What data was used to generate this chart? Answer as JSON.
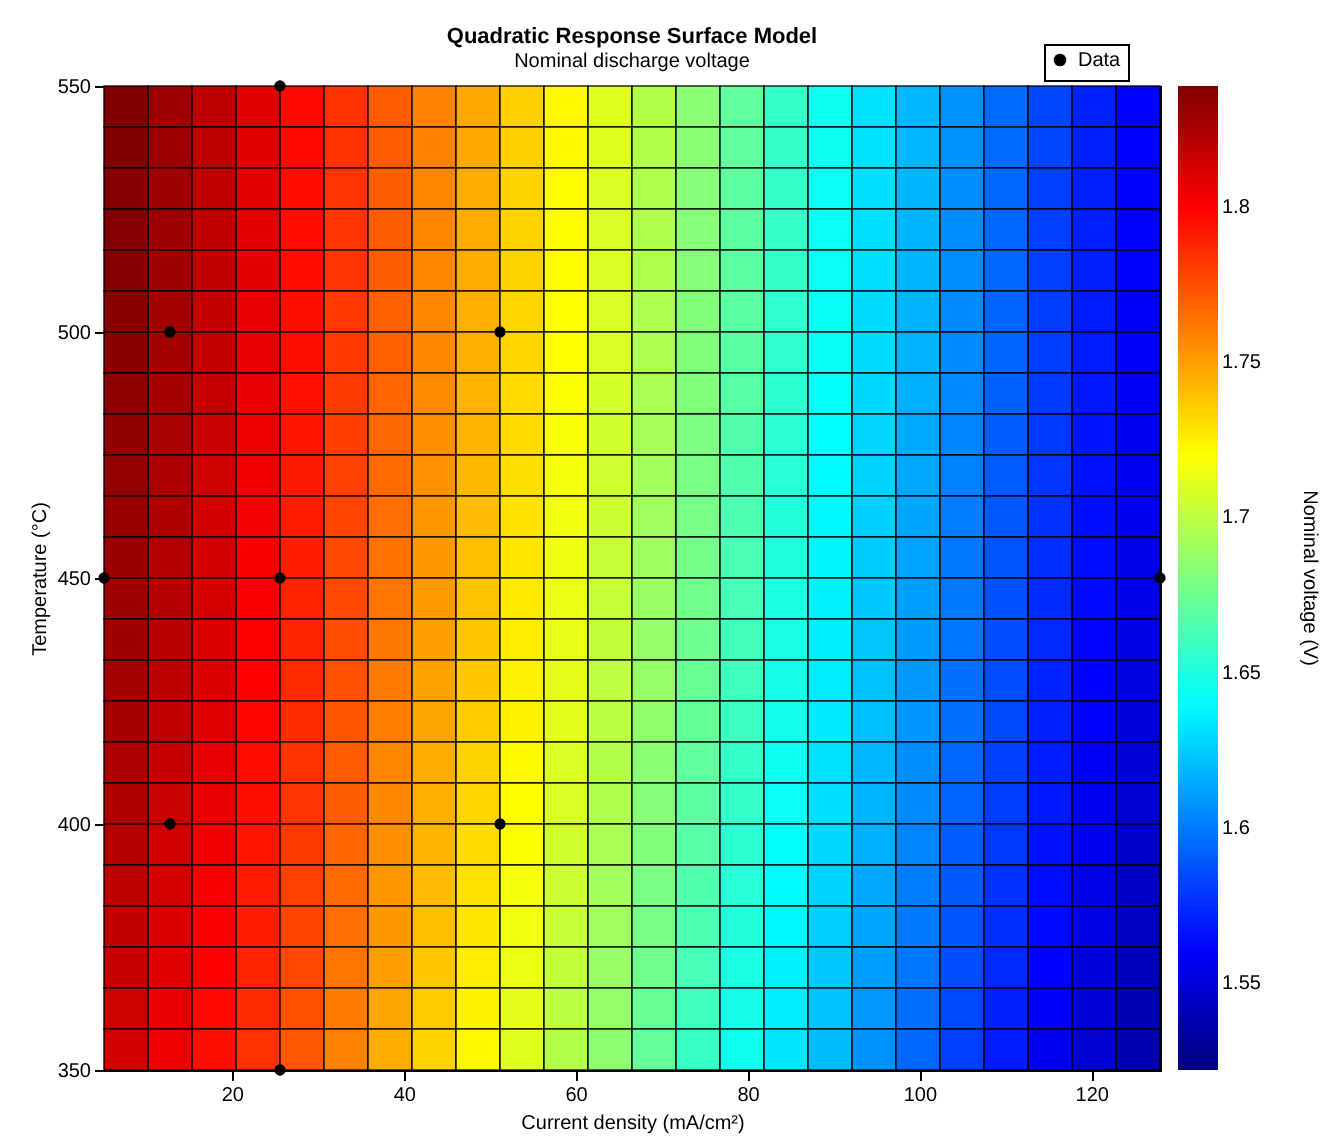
{
  "chart_data": {
    "type": "heatmap",
    "title": "Quadratic Response Surface Model",
    "subtitle": "Nominal discharge voltage",
    "xlabel": "Current density (mA/cm²)",
    "ylabel": "Temperature (°C)",
    "clabel": "Nominal voltage (V)",
    "xlim": [
      5.12,
      128
    ],
    "ylim": [
      350,
      550
    ],
    "xticks": [
      20,
      40,
      60,
      80,
      100,
      120
    ],
    "yticks": [
      350,
      400,
      450,
      500,
      550
    ],
    "clim": [
      1.522,
      1.839
    ],
    "cticks": [
      1.55,
      1.6,
      1.65,
      1.7,
      1.75,
      1.8
    ],
    "legend": "top right",
    "marker": "circle",
    "cells": [
      [
        1.838,
        1.83,
        1.82,
        1.809,
        1.797,
        1.784,
        1.771,
        1.759,
        1.747,
        1.735,
        1.722,
        1.71,
        1.697,
        1.684,
        1.671,
        1.658,
        1.645,
        1.632,
        1.619,
        1.607,
        1.595,
        1.583,
        1.572,
        1.562
      ],
      [
        1.838,
        1.83,
        1.82,
        1.809,
        1.797,
        1.784,
        1.771,
        1.759,
        1.747,
        1.735,
        1.722,
        1.71,
        1.697,
        1.684,
        1.671,
        1.658,
        1.645,
        1.632,
        1.619,
        1.607,
        1.595,
        1.583,
        1.572,
        1.562
      ],
      [
        1.837,
        1.829,
        1.819,
        1.808,
        1.796,
        1.783,
        1.77,
        1.758,
        1.746,
        1.734,
        1.721,
        1.709,
        1.696,
        1.683,
        1.67,
        1.657,
        1.644,
        1.631,
        1.618,
        1.606,
        1.594,
        1.582,
        1.571,
        1.561
      ],
      [
        1.837,
        1.829,
        1.819,
        1.808,
        1.796,
        1.783,
        1.77,
        1.758,
        1.746,
        1.734,
        1.721,
        1.709,
        1.696,
        1.683,
        1.67,
        1.657,
        1.644,
        1.631,
        1.618,
        1.606,
        1.594,
        1.582,
        1.571,
        1.561
      ],
      [
        1.837,
        1.829,
        1.819,
        1.808,
        1.796,
        1.783,
        1.77,
        1.758,
        1.746,
        1.734,
        1.721,
        1.709,
        1.696,
        1.683,
        1.67,
        1.657,
        1.644,
        1.631,
        1.618,
        1.606,
        1.594,
        1.582,
        1.571,
        1.561
      ],
      [
        1.836,
        1.828,
        1.818,
        1.807,
        1.795,
        1.782,
        1.769,
        1.757,
        1.745,
        1.733,
        1.72,
        1.708,
        1.695,
        1.682,
        1.669,
        1.656,
        1.643,
        1.63,
        1.617,
        1.605,
        1.593,
        1.581,
        1.57,
        1.56
      ],
      [
        1.836,
        1.828,
        1.818,
        1.807,
        1.795,
        1.782,
        1.769,
        1.757,
        1.745,
        1.733,
        1.72,
        1.708,
        1.695,
        1.682,
        1.669,
        1.656,
        1.643,
        1.63,
        1.617,
        1.605,
        1.593,
        1.581,
        1.57,
        1.56
      ],
      [
        1.835,
        1.827,
        1.817,
        1.806,
        1.794,
        1.781,
        1.768,
        1.756,
        1.744,
        1.732,
        1.719,
        1.707,
        1.694,
        1.681,
        1.668,
        1.655,
        1.642,
        1.629,
        1.616,
        1.604,
        1.592,
        1.58,
        1.569,
        1.559
      ],
      [
        1.834,
        1.826,
        1.816,
        1.805,
        1.793,
        1.78,
        1.767,
        1.755,
        1.743,
        1.731,
        1.718,
        1.706,
        1.693,
        1.68,
        1.667,
        1.654,
        1.641,
        1.628,
        1.615,
        1.603,
        1.591,
        1.579,
        1.568,
        1.558
      ],
      [
        1.833,
        1.825,
        1.815,
        1.804,
        1.792,
        1.779,
        1.766,
        1.754,
        1.742,
        1.73,
        1.717,
        1.705,
        1.692,
        1.679,
        1.666,
        1.653,
        1.64,
        1.627,
        1.614,
        1.602,
        1.59,
        1.578,
        1.567,
        1.557
      ],
      [
        1.832,
        1.824,
        1.814,
        1.803,
        1.791,
        1.778,
        1.765,
        1.753,
        1.741,
        1.729,
        1.716,
        1.704,
        1.691,
        1.678,
        1.665,
        1.652,
        1.639,
        1.626,
        1.613,
        1.601,
        1.589,
        1.577,
        1.566,
        1.556
      ],
      [
        1.831,
        1.823,
        1.813,
        1.802,
        1.79,
        1.777,
        1.764,
        1.752,
        1.74,
        1.728,
        1.715,
        1.703,
        1.69,
        1.677,
        1.664,
        1.651,
        1.638,
        1.625,
        1.612,
        1.6,
        1.588,
        1.576,
        1.565,
        1.555
      ],
      [
        1.83,
        1.822,
        1.812,
        1.801,
        1.789,
        1.776,
        1.763,
        1.751,
        1.739,
        1.727,
        1.714,
        1.702,
        1.689,
        1.676,
        1.663,
        1.65,
        1.637,
        1.624,
        1.611,
        1.599,
        1.587,
        1.575,
        1.564,
        1.554
      ],
      [
        1.829,
        1.821,
        1.811,
        1.8,
        1.788,
        1.775,
        1.762,
        1.75,
        1.738,
        1.726,
        1.713,
        1.701,
        1.688,
        1.675,
        1.662,
        1.649,
        1.636,
        1.623,
        1.61,
        1.598,
        1.586,
        1.574,
        1.563,
        1.553
      ],
      [
        1.828,
        1.82,
        1.81,
        1.799,
        1.787,
        1.774,
        1.761,
        1.749,
        1.737,
        1.725,
        1.712,
        1.7,
        1.687,
        1.674,
        1.661,
        1.648,
        1.635,
        1.622,
        1.609,
        1.597,
        1.585,
        1.573,
        1.562,
        1.552
      ],
      [
        1.827,
        1.819,
        1.809,
        1.798,
        1.786,
        1.773,
        1.76,
        1.748,
        1.736,
        1.724,
        1.711,
        1.699,
        1.686,
        1.673,
        1.66,
        1.647,
        1.634,
        1.621,
        1.608,
        1.596,
        1.584,
        1.572,
        1.561,
        1.551
      ],
      [
        1.825,
        1.817,
        1.807,
        1.796,
        1.784,
        1.771,
        1.758,
        1.746,
        1.734,
        1.722,
        1.709,
        1.697,
        1.684,
        1.671,
        1.658,
        1.645,
        1.632,
        1.619,
        1.606,
        1.594,
        1.582,
        1.57,
        1.559,
        1.549
      ],
      [
        1.824,
        1.816,
        1.806,
        1.795,
        1.783,
        1.77,
        1.757,
        1.745,
        1.733,
        1.721,
        1.708,
        1.696,
        1.683,
        1.67,
        1.657,
        1.644,
        1.631,
        1.618,
        1.605,
        1.593,
        1.581,
        1.569,
        1.558,
        1.548
      ],
      [
        1.822,
        1.814,
        1.804,
        1.793,
        1.781,
        1.768,
        1.755,
        1.743,
        1.731,
        1.719,
        1.706,
        1.694,
        1.681,
        1.668,
        1.655,
        1.642,
        1.629,
        1.616,
        1.603,
        1.591,
        1.579,
        1.567,
        1.556,
        1.546
      ],
      [
        1.82,
        1.812,
        1.802,
        1.791,
        1.779,
        1.766,
        1.753,
        1.741,
        1.729,
        1.717,
        1.704,
        1.692,
        1.679,
        1.666,
        1.653,
        1.64,
        1.627,
        1.614,
        1.601,
        1.589,
        1.577,
        1.565,
        1.554,
        1.544
      ],
      [
        1.819,
        1.811,
        1.801,
        1.79,
        1.778,
        1.765,
        1.752,
        1.74,
        1.728,
        1.716,
        1.703,
        1.691,
        1.678,
        1.665,
        1.652,
        1.639,
        1.626,
        1.613,
        1.6,
        1.588,
        1.576,
        1.564,
        1.553,
        1.543
      ],
      [
        1.817,
        1.809,
        1.799,
        1.788,
        1.776,
        1.763,
        1.75,
        1.738,
        1.726,
        1.714,
        1.701,
        1.689,
        1.676,
        1.663,
        1.65,
        1.637,
        1.624,
        1.611,
        1.598,
        1.586,
        1.574,
        1.562,
        1.551,
        1.541
      ],
      [
        1.815,
        1.807,
        1.797,
        1.786,
        1.774,
        1.761,
        1.748,
        1.736,
        1.724,
        1.712,
        1.699,
        1.687,
        1.674,
        1.661,
        1.648,
        1.635,
        1.622,
        1.609,
        1.596,
        1.584,
        1.572,
        1.56,
        1.549,
        1.539
      ],
      [
        1.813,
        1.805,
        1.795,
        1.784,
        1.772,
        1.759,
        1.746,
        1.734,
        1.722,
        1.71,
        1.697,
        1.685,
        1.672,
        1.659,
        1.646,
        1.633,
        1.62,
        1.607,
        1.594,
        1.582,
        1.57,
        1.558,
        1.547,
        1.537
      ]
    ],
    "series": [
      {
        "type": "scatter",
        "name": "Data",
        "color": "#000000",
        "x": [
          5.12,
          12.8,
          12.8,
          25.6,
          25.6,
          25.6,
          51.2,
          51.2,
          128
        ],
        "values": [
          450,
          500,
          400,
          550,
          450,
          350,
          500,
          400,
          450
        ]
      }
    ]
  }
}
